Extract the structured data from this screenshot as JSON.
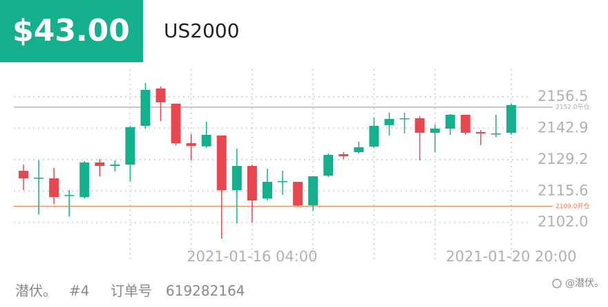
{
  "header": {
    "price": "$43.00",
    "symbol": "US2000"
  },
  "chart_data": {
    "type": "candlestick",
    "categories": [
      null,
      null,
      null,
      null,
      null,
      null,
      null,
      null,
      null,
      null,
      null,
      null,
      null,
      null,
      null,
      "2021-01-16 04:00",
      null,
      null,
      null,
      null,
      null,
      null,
      null,
      null,
      null,
      null,
      null,
      null,
      null,
      null,
      null,
      null,
      "2021-01-20 20:00"
    ],
    "open": [
      2124.4,
      2121.1,
      2121.1,
      2113.6,
      2113.0,
      2128.0,
      2126.5,
      2127.1,
      2143.9,
      2160.1,
      2153.5,
      2136.4,
      2135.0,
      2139.7,
      2116.0,
      2126.5,
      2112.4,
      2119.6,
      2119.6,
      2109.4,
      2122.3,
      2131.6,
      2132.5,
      2134.9,
      2144.2,
      2146.9,
      2147.2,
      2140.9,
      2142.7,
      2148.7,
      2141.2,
      2140.3,
      2140.9
    ],
    "close": [
      2121.1,
      2121.4,
      2113.0,
      2113.9,
      2128.0,
      2126.5,
      2127.1,
      2143.3,
      2159.5,
      2154.1,
      2136.4,
      2135.2,
      2140.0,
      2116.0,
      2126.5,
      2111.5,
      2119.6,
      2119.9,
      2109.4,
      2122.0,
      2131.3,
      2130.7,
      2134.6,
      2143.9,
      2146.9,
      2147.2,
      2140.9,
      2142.7,
      2148.7,
      2140.9,
      2140.6,
      2140.6,
      2152.9
    ],
    "high": [
      2127.1,
      2128.9,
      2125.6,
      2116.0,
      2128.6,
      2129.5,
      2128.9,
      2143.9,
      2162.5,
      2161.0,
      2153.5,
      2140.3,
      2145.7,
      2139.7,
      2134.0,
      2127.1,
      2125.3,
      2124.4,
      2119.6,
      2122.0,
      2131.9,
      2132.5,
      2137.0,
      2147.5,
      2149.6,
      2149.6,
      2148.1,
      2144.5,
      2149.0,
      2148.7,
      2142.1,
      2148.7,
      2153.5
    ],
    "low": [
      2116.0,
      2105.5,
      2110.0,
      2104.6,
      2112.4,
      2122.0,
      2124.1,
      2119.9,
      2142.7,
      2146.0,
      2135.5,
      2128.9,
      2134.3,
      2095.0,
      2101.6,
      2101.9,
      2111.5,
      2113.9,
      2109.1,
      2107.0,
      2121.7,
      2129.5,
      2131.9,
      2134.3,
      2139.7,
      2140.6,
      2128.9,
      2132.5,
      2140.0,
      2140.0,
      2135.5,
      2139.1,
      2140.0
    ],
    "up_color": "#14b08d",
    "down_color": "#e8474f",
    "ylim": [
      2092,
      2168.5
    ],
    "yticks": [
      {
        "value": 2102,
        "label": "2102.0"
      },
      2115.6,
      2129.2,
      2142.9,
      2156.5
    ],
    "lines": [
      {
        "value": 2152,
        "label": "2152.0平仓",
        "color": "#a8a8a8"
      },
      {
        "value": 2109,
        "label": "2109.0开仓",
        "color": "#f07a4a"
      }
    ],
    "grid": true
  },
  "footer": {
    "name": "潜伏。",
    "number": "#4",
    "order_label": "订单号",
    "order_id": "619282164",
    "watermark": "@潜伏。"
  }
}
